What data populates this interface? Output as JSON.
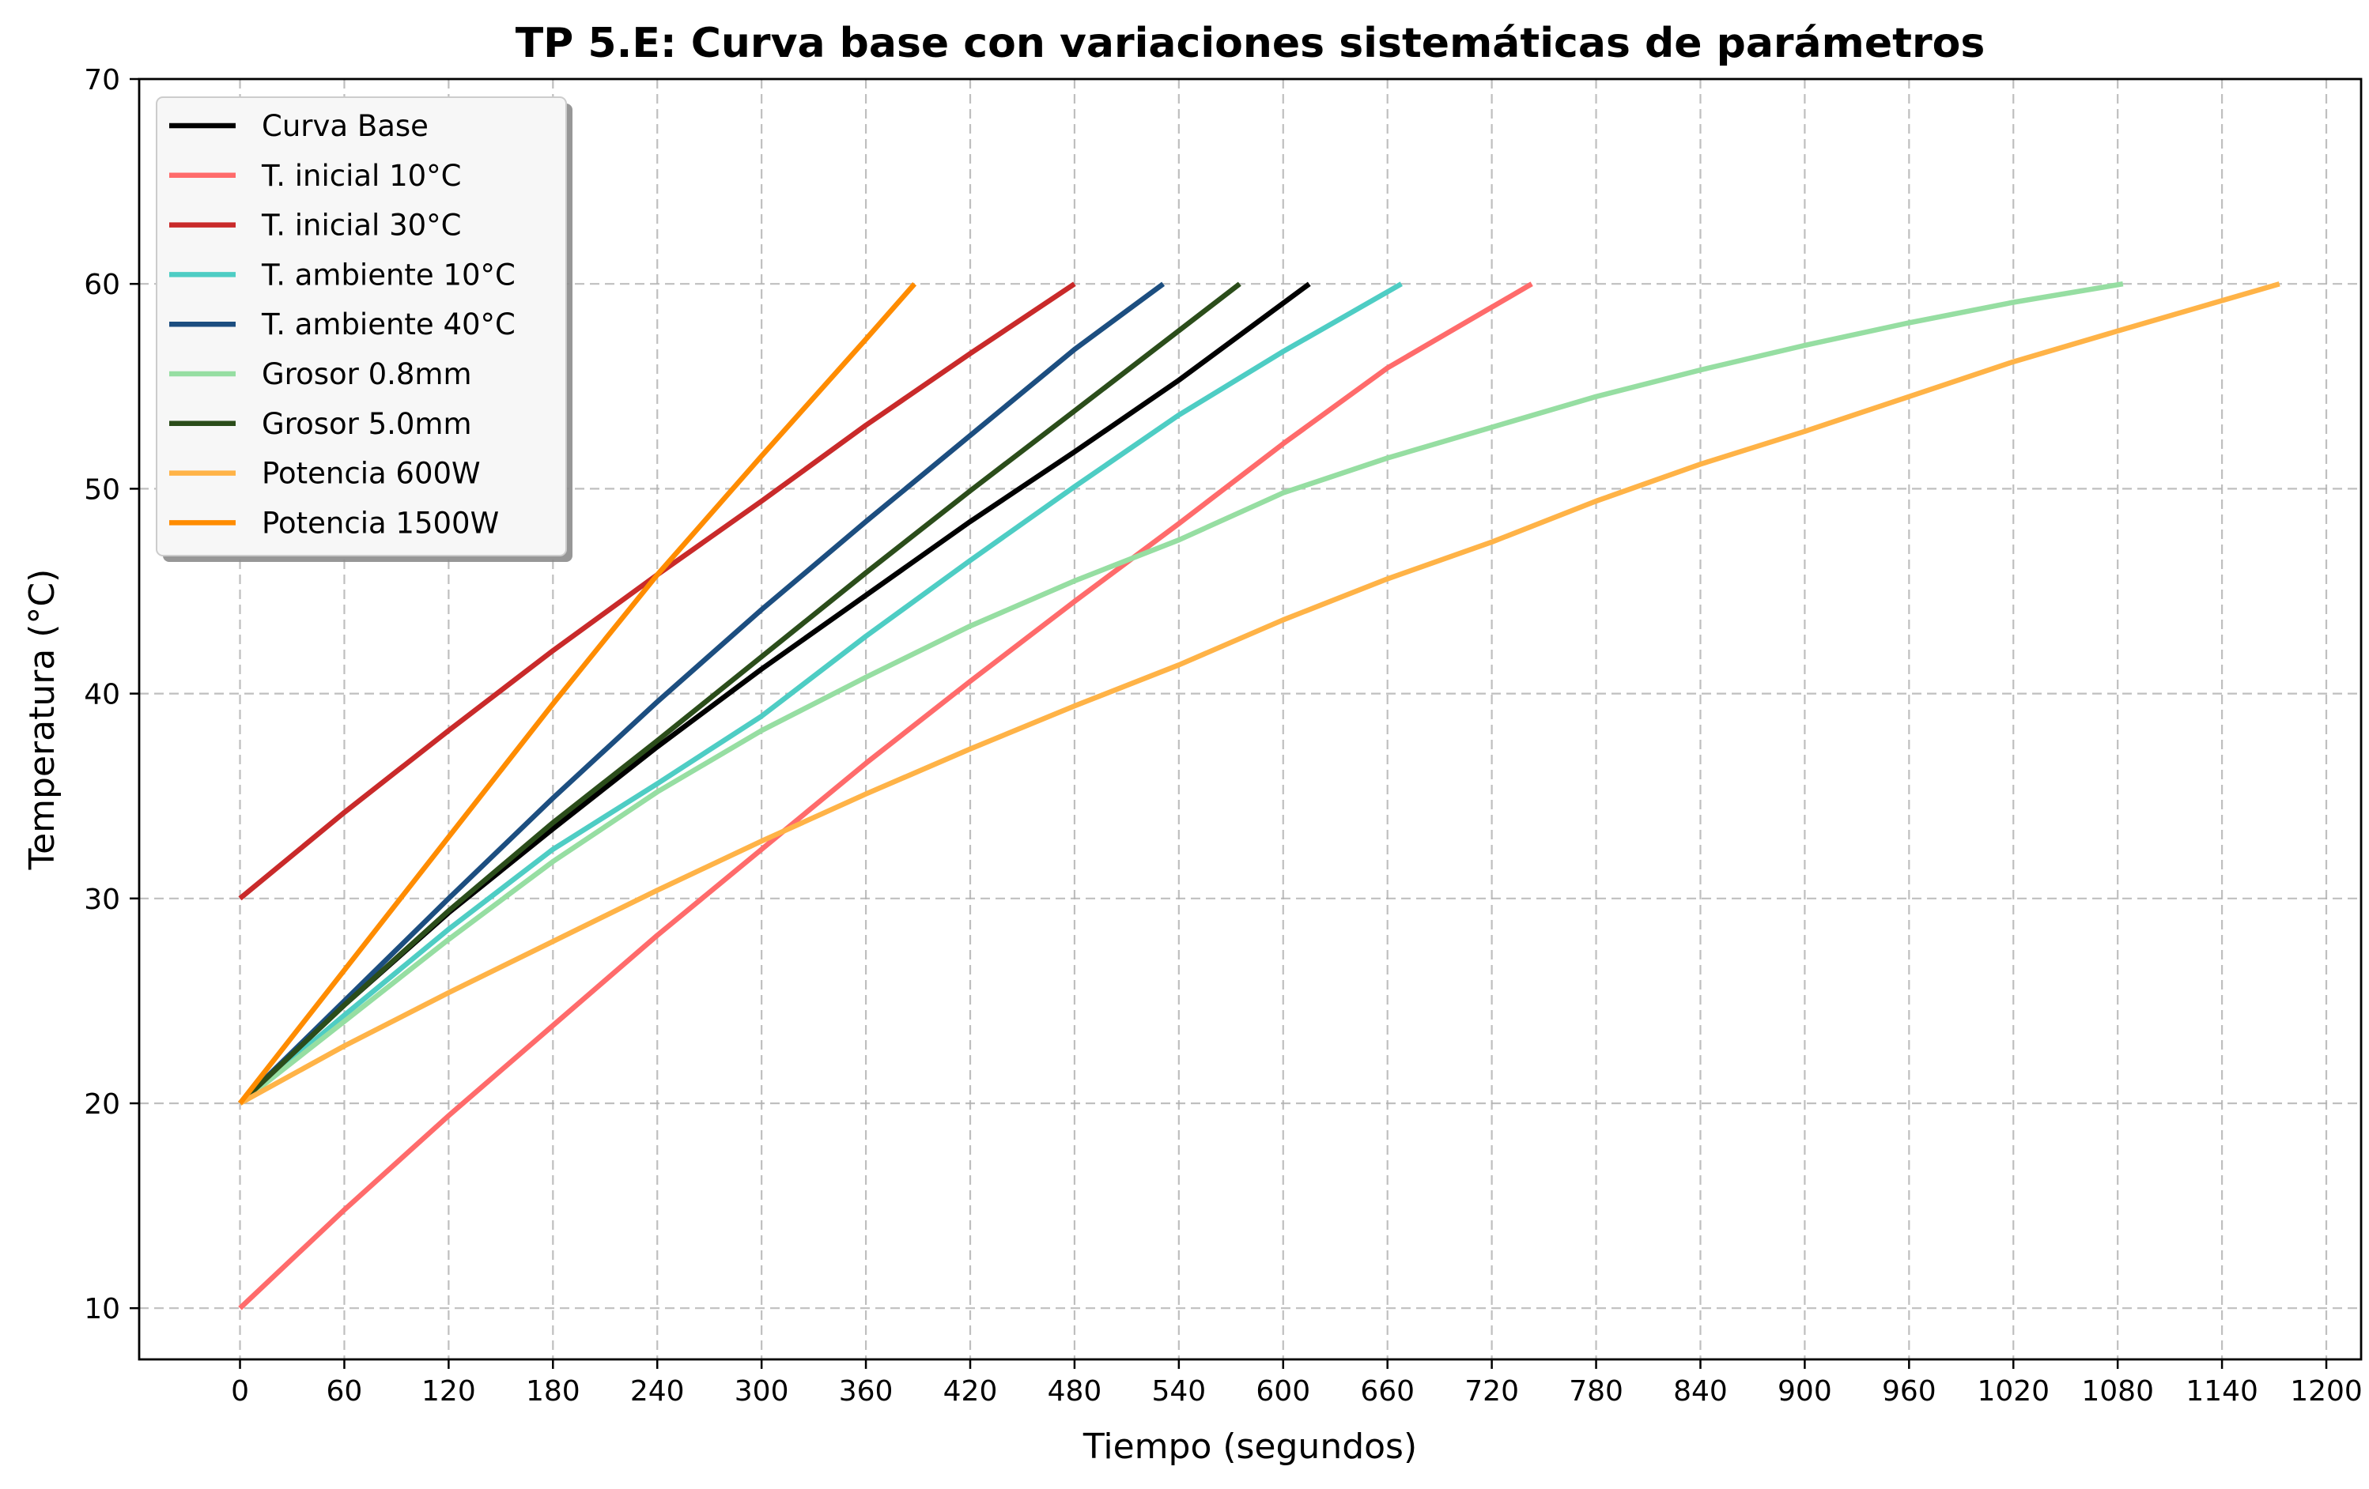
{
  "chart_data": {
    "type": "line",
    "title": "TP 5.E: Curva base con variaciones sistemáticas de parámetros",
    "xlabel": "Tiempo (segundos)",
    "ylabel": "Temperatura (°C)",
    "xlim": [
      -58,
      1220
    ],
    "ylim": [
      7.5,
      70
    ],
    "xticks": [
      0,
      60,
      120,
      180,
      240,
      300,
      360,
      420,
      480,
      540,
      600,
      660,
      720,
      780,
      840,
      900,
      960,
      1020,
      1080,
      1140,
      1200
    ],
    "yticks": [
      10,
      20,
      30,
      40,
      50,
      60,
      70
    ],
    "grid": true,
    "legend_position": "upper-left",
    "series": [
      {
        "name": "Curva Base",
        "color": "#000000",
        "x": [
          0,
          60,
          120,
          180,
          240,
          300,
          360,
          420,
          480,
          540,
          615
        ],
        "y": [
          20,
          24.8,
          29.3,
          33.4,
          37.4,
          41.2,
          44.8,
          48.4,
          51.8,
          55.3,
          60
        ]
      },
      {
        "name": "T. inicial 10°C",
        "color": "#ff6b6b",
        "x": [
          0,
          60,
          120,
          180,
          240,
          300,
          360,
          420,
          480,
          540,
          600,
          660,
          743
        ],
        "y": [
          10,
          14.8,
          19.4,
          23.8,
          28.2,
          32.4,
          36.6,
          40.6,
          44.5,
          48.3,
          52.2,
          55.9,
          60
        ]
      },
      {
        "name": "T. inicial 30°C",
        "color": "#c92a2a",
        "x": [
          0,
          60,
          120,
          180,
          240,
          300,
          360,
          420,
          480
        ],
        "y": [
          30,
          34.2,
          38.2,
          42.1,
          45.8,
          49.4,
          53.1,
          56.6,
          60
        ]
      },
      {
        "name": "T. ambiente 10°C",
        "color": "#4ecdc4",
        "x": [
          0,
          60,
          120,
          180,
          240,
          300,
          360,
          420,
          480,
          540,
          600,
          668
        ],
        "y": [
          20,
          24.3,
          28.5,
          32.4,
          35.6,
          38.9,
          42.8,
          46.5,
          50.1,
          53.6,
          56.7,
          60
        ]
      },
      {
        "name": "T. ambiente 40°C",
        "color": "#1c4e80",
        "x": [
          0,
          60,
          120,
          180,
          240,
          300,
          360,
          420,
          480,
          531
        ],
        "y": [
          20,
          25.0,
          30.0,
          34.9,
          39.6,
          44.1,
          48.4,
          52.6,
          56.8,
          60
        ]
      },
      {
        "name": "Grosor 0.8mm",
        "color": "#96dea2",
        "x": [
          0,
          60,
          120,
          180,
          240,
          300,
          360,
          420,
          480,
          540,
          600,
          660,
          720,
          780,
          840,
          900,
          960,
          1020,
          1083
        ],
        "y": [
          20,
          24.0,
          28.0,
          31.8,
          35.2,
          38.2,
          40.8,
          43.3,
          45.5,
          47.5,
          49.8,
          51.5,
          53.0,
          54.5,
          55.8,
          57.0,
          58.1,
          59.1,
          60
        ]
      },
      {
        "name": "Grosor 5.0mm",
        "color": "#2b4d1a",
        "x": [
          0,
          60,
          120,
          180,
          240,
          300,
          360,
          420,
          480,
          575
        ],
        "y": [
          20,
          24.8,
          29.4,
          33.7,
          37.7,
          41.8,
          45.9,
          49.9,
          53.8,
          60
        ]
      },
      {
        "name": "Potencia 600W",
        "color": "#ffb347",
        "x": [
          0,
          60,
          120,
          180,
          240,
          300,
          360,
          420,
          480,
          540,
          600,
          660,
          720,
          780,
          840,
          900,
          960,
          1020,
          1080,
          1173
        ],
        "y": [
          20,
          22.8,
          25.4,
          27.9,
          30.4,
          32.8,
          35.1,
          37.3,
          39.4,
          41.4,
          43.6,
          45.6,
          47.4,
          49.4,
          51.2,
          52.8,
          54.5,
          56.2,
          57.7,
          60
        ]
      },
      {
        "name": "Potencia 1500W",
        "color": "#ff8c00",
        "x": [
          0,
          60,
          120,
          180,
          240,
          300,
          360,
          388
        ],
        "y": [
          20,
          26.5,
          33.0,
          39.5,
          45.8,
          51.6,
          57.3,
          60
        ]
      }
    ]
  }
}
